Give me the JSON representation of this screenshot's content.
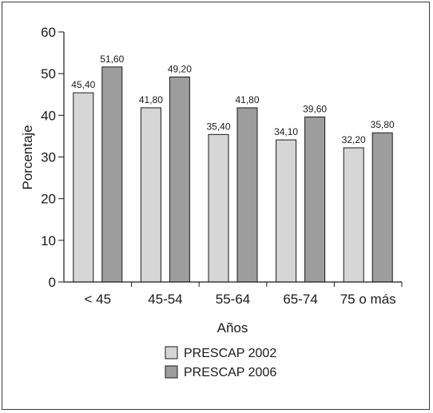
{
  "chart_data": {
    "type": "bar",
    "xlabel": "Años",
    "ylabel": "Porcentaje",
    "ylim": [
      0,
      60
    ],
    "yticks": [
      0,
      10,
      20,
      30,
      40,
      50,
      60
    ],
    "categories": [
      "< 45",
      "45-54",
      "55-64",
      "65-74",
      "75 o más"
    ],
    "series": [
      {
        "name": "PRESCAP 2002",
        "color": "#d6d6d6",
        "values": [
          45.4,
          41.8,
          35.4,
          34.1,
          32.2
        ],
        "labels": [
          "45,40",
          "41,80",
          "35,40",
          "34,10",
          "32,20"
        ]
      },
      {
        "name": "PRESCAP 2006",
        "color": "#9d9d9d",
        "values": [
          51.6,
          49.2,
          41.8,
          39.6,
          35.8
        ],
        "labels": [
          "51,60",
          "49,20",
          "41,80",
          "39,60",
          "35,80"
        ]
      }
    ],
    "grid": false,
    "legend": "bottom-center"
  }
}
